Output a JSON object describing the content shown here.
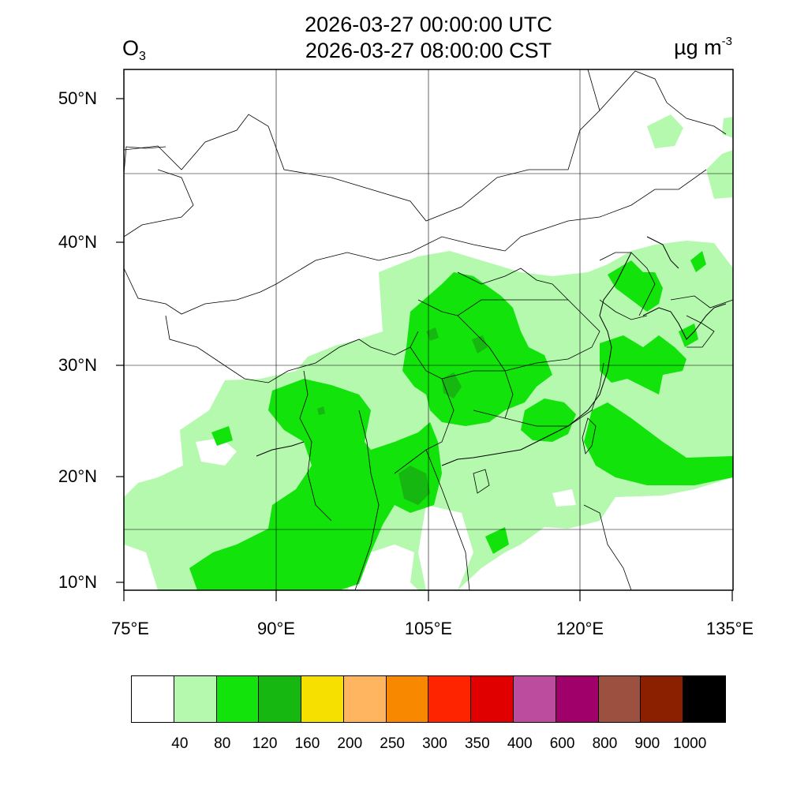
{
  "header": {
    "time_utc": "2026-03-27 00:00:00 UTC",
    "time_cst": "2026-03-27 08:00:00 CST",
    "variable": "O",
    "variable_sub": "3",
    "unit": "µg m",
    "unit_sup": "-3"
  },
  "axes": {
    "lat_labels": [
      "50°N",
      "40°N",
      "30°N",
      "20°N",
      "10°N"
    ],
    "lon_labels": [
      "75°E",
      "90°E",
      "105°E",
      "120°E",
      "135°E"
    ],
    "lat_range": [
      9,
      52
    ],
    "lon_range": [
      75,
      135
    ]
  },
  "legend": {
    "colors": [
      "#ffffff",
      "#b4f9ae",
      "#11e30b",
      "#16b710",
      "#f5e000",
      "#ffb560",
      "#f88800",
      "#ff2400",
      "#e00000",
      "#bb4c9e",
      "#a0006a",
      "#9b5040",
      "#8b2000",
      "#000000"
    ],
    "ticks": [
      "40",
      "80",
      "120",
      "160",
      "200",
      "250",
      "300",
      "350",
      "400",
      "600",
      "800",
      "900",
      "1000"
    ]
  }
}
